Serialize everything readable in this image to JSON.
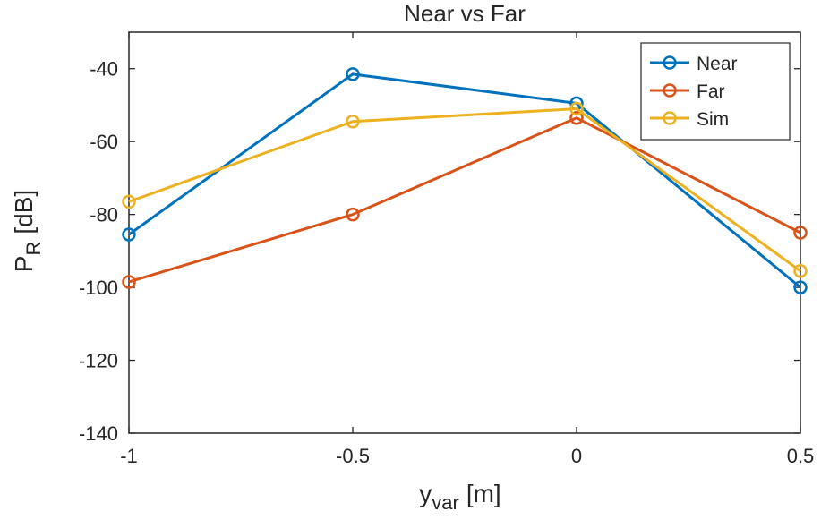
{
  "chart_data": {
    "type": "line",
    "title": "Near vs Far",
    "xlabel": {
      "main": "y",
      "sub": "var",
      "unit": "[m]"
    },
    "ylabel": {
      "main": "P",
      "sub": "R",
      "unit": "[dB]"
    },
    "x": [
      -1,
      -0.5,
      0,
      0.5
    ],
    "xlim": [
      -1,
      0.5
    ],
    "ylim": [
      -140,
      -30
    ],
    "xticks": [
      -1,
      -0.5,
      0,
      0.5
    ],
    "xtick_labels": [
      "-1",
      "-0.5",
      "0",
      "0.5"
    ],
    "yticks": [
      -140,
      -120,
      -100,
      -80,
      -60,
      -40
    ],
    "ytick_labels": [
      "-140",
      "-120",
      "-100",
      "-80",
      "-60",
      "-40"
    ],
    "grid": false,
    "legend_position": "top-right",
    "series": [
      {
        "name": "Near",
        "color": "#0072BD",
        "values": [
          -85.5,
          -41.5,
          -49.5,
          -100
        ]
      },
      {
        "name": "Far",
        "color": "#D95319",
        "values": [
          -98.5,
          -80,
          -53.5,
          -85
        ]
      },
      {
        "name": "Sim",
        "color": "#EDB120",
        "values": [
          -76.5,
          -54.5,
          -51,
          -95.5
        ]
      }
    ]
  }
}
